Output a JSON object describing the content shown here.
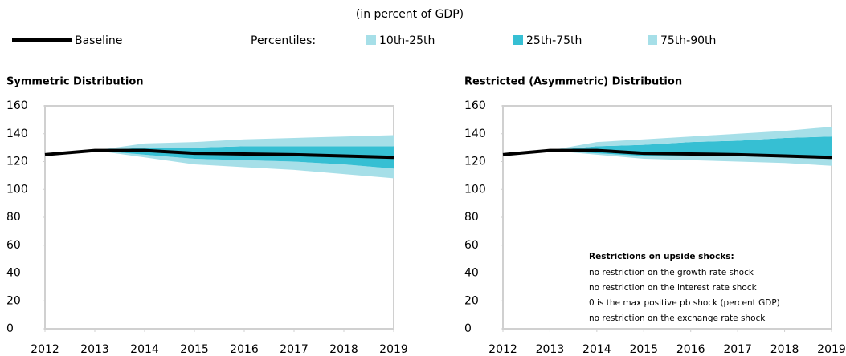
{
  "subtitle": "(in percent of GDP)",
  "legend_label": "Percentiles:",
  "chart_data": [
    {
      "type": "fan",
      "title": "Symmetric Distribution",
      "x": [
        2012,
        2013,
        2014,
        2015,
        2016,
        2017,
        2018,
        2019
      ],
      "xlim": [
        2012,
        2019
      ],
      "xticks": [
        2012,
        2013,
        2014,
        2015,
        2016,
        2017,
        2018,
        2019
      ],
      "ylim": [
        0,
        160
      ],
      "yticks": [
        0,
        20,
        40,
        60,
        80,
        100,
        120,
        140,
        160
      ],
      "grid": false,
      "series": [
        {
          "name": "Baseline",
          "color": "#000000",
          "values": [
            125,
            128,
            128,
            126,
            125.5,
            125,
            124,
            123
          ]
        },
        {
          "name": "10th-25th",
          "color": "#a6dfe8",
          "lower": [
            null,
            128,
            123,
            118,
            116,
            114,
            111,
            108
          ],
          "upper": [
            null,
            128,
            125,
            122,
            121,
            120,
            118,
            115
          ]
        },
        {
          "name": "25th-75th",
          "color": "#36bfd3",
          "lower": [
            null,
            128,
            125,
            122,
            121,
            120,
            118,
            115
          ],
          "upper": [
            null,
            128,
            130,
            130,
            131,
            131,
            131,
            131
          ]
        },
        {
          "name": "75th-90th",
          "color": "#a6dfe8",
          "lower": [
            null,
            128,
            130,
            130,
            131,
            131,
            131,
            131
          ],
          "upper": [
            null,
            128,
            133,
            134,
            136,
            137,
            138,
            139
          ]
        }
      ]
    },
    {
      "type": "fan",
      "title": "Restricted (Asymmetric) Distribution",
      "x": [
        2012,
        2013,
        2014,
        2015,
        2016,
        2017,
        2018,
        2019
      ],
      "xlim": [
        2012,
        2019
      ],
      "xticks": [
        2012,
        2013,
        2014,
        2015,
        2016,
        2017,
        2018,
        2019
      ],
      "ylim": [
        0,
        160
      ],
      "yticks": [
        0,
        20,
        40,
        60,
        80,
        100,
        120,
        140,
        160
      ],
      "grid": false,
      "series": [
        {
          "name": "Baseline",
          "color": "#000000",
          "values": [
            125,
            128,
            128,
            126,
            125.5,
            125,
            124,
            123
          ]
        },
        {
          "name": "10th-25th",
          "color": "#a6dfe8",
          "lower": [
            null,
            128,
            125,
            122,
            121,
            120,
            119,
            117
          ],
          "upper": [
            null,
            128,
            126,
            124,
            124,
            124,
            123,
            122
          ]
        },
        {
          "name": "25th-75th",
          "color": "#36bfd3",
          "lower": [
            null,
            128,
            126,
            124,
            124,
            124,
            123,
            122
          ],
          "upper": [
            null,
            128,
            131,
            132,
            134,
            135,
            137,
            138
          ]
        },
        {
          "name": "75th-90th",
          "color": "#a6dfe8",
          "lower": [
            null,
            128,
            131,
            132,
            134,
            135,
            137,
            138
          ],
          "upper": [
            null,
            128,
            134,
            136,
            138,
            140,
            142,
            145
          ]
        }
      ],
      "annotation": {
        "title": "Restrictions on upside shocks:",
        "lines": [
          "no restriction on the growth rate shock",
          "no restriction on the interest rate shock",
          "0 is the max positive pb shock (percent GDP)",
          "no restriction on the exchange rate shock"
        ]
      }
    }
  ]
}
